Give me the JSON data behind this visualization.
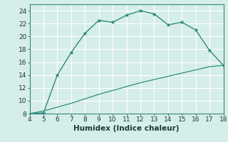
{
  "xlabel": "Humidex (Indice chaleur)",
  "x_main": [
    4,
    5,
    6,
    7,
    8,
    9,
    10,
    11,
    12,
    13,
    14,
    15,
    16,
    17,
    18
  ],
  "y_main": [
    8.0,
    8.1,
    14.0,
    17.5,
    20.5,
    22.5,
    22.2,
    23.3,
    24.0,
    23.5,
    21.8,
    22.2,
    21.0,
    17.8,
    15.5
  ],
  "x_diag": [
    4,
    5,
    6,
    7,
    8,
    9,
    10,
    11,
    12,
    13,
    14,
    15,
    16,
    17,
    18
  ],
  "y_diag": [
    8.0,
    8.4,
    9.0,
    9.6,
    10.3,
    11.0,
    11.6,
    12.2,
    12.8,
    13.3,
    13.8,
    14.3,
    14.8,
    15.3,
    15.5
  ],
  "line_color": "#2e8b7a",
  "bg_color": "#d6eeea",
  "grid_color": "#b0ddd6",
  "xlim": [
    4,
    18
  ],
  "ylim": [
    8,
    25
  ],
  "xticks": [
    4,
    5,
    6,
    7,
    8,
    9,
    10,
    11,
    12,
    13,
    14,
    15,
    16,
    17,
    18
  ],
  "yticks": [
    8,
    10,
    12,
    14,
    16,
    18,
    20,
    22,
    24
  ],
  "tick_fontsize": 6.5,
  "xlabel_fontsize": 7.5
}
